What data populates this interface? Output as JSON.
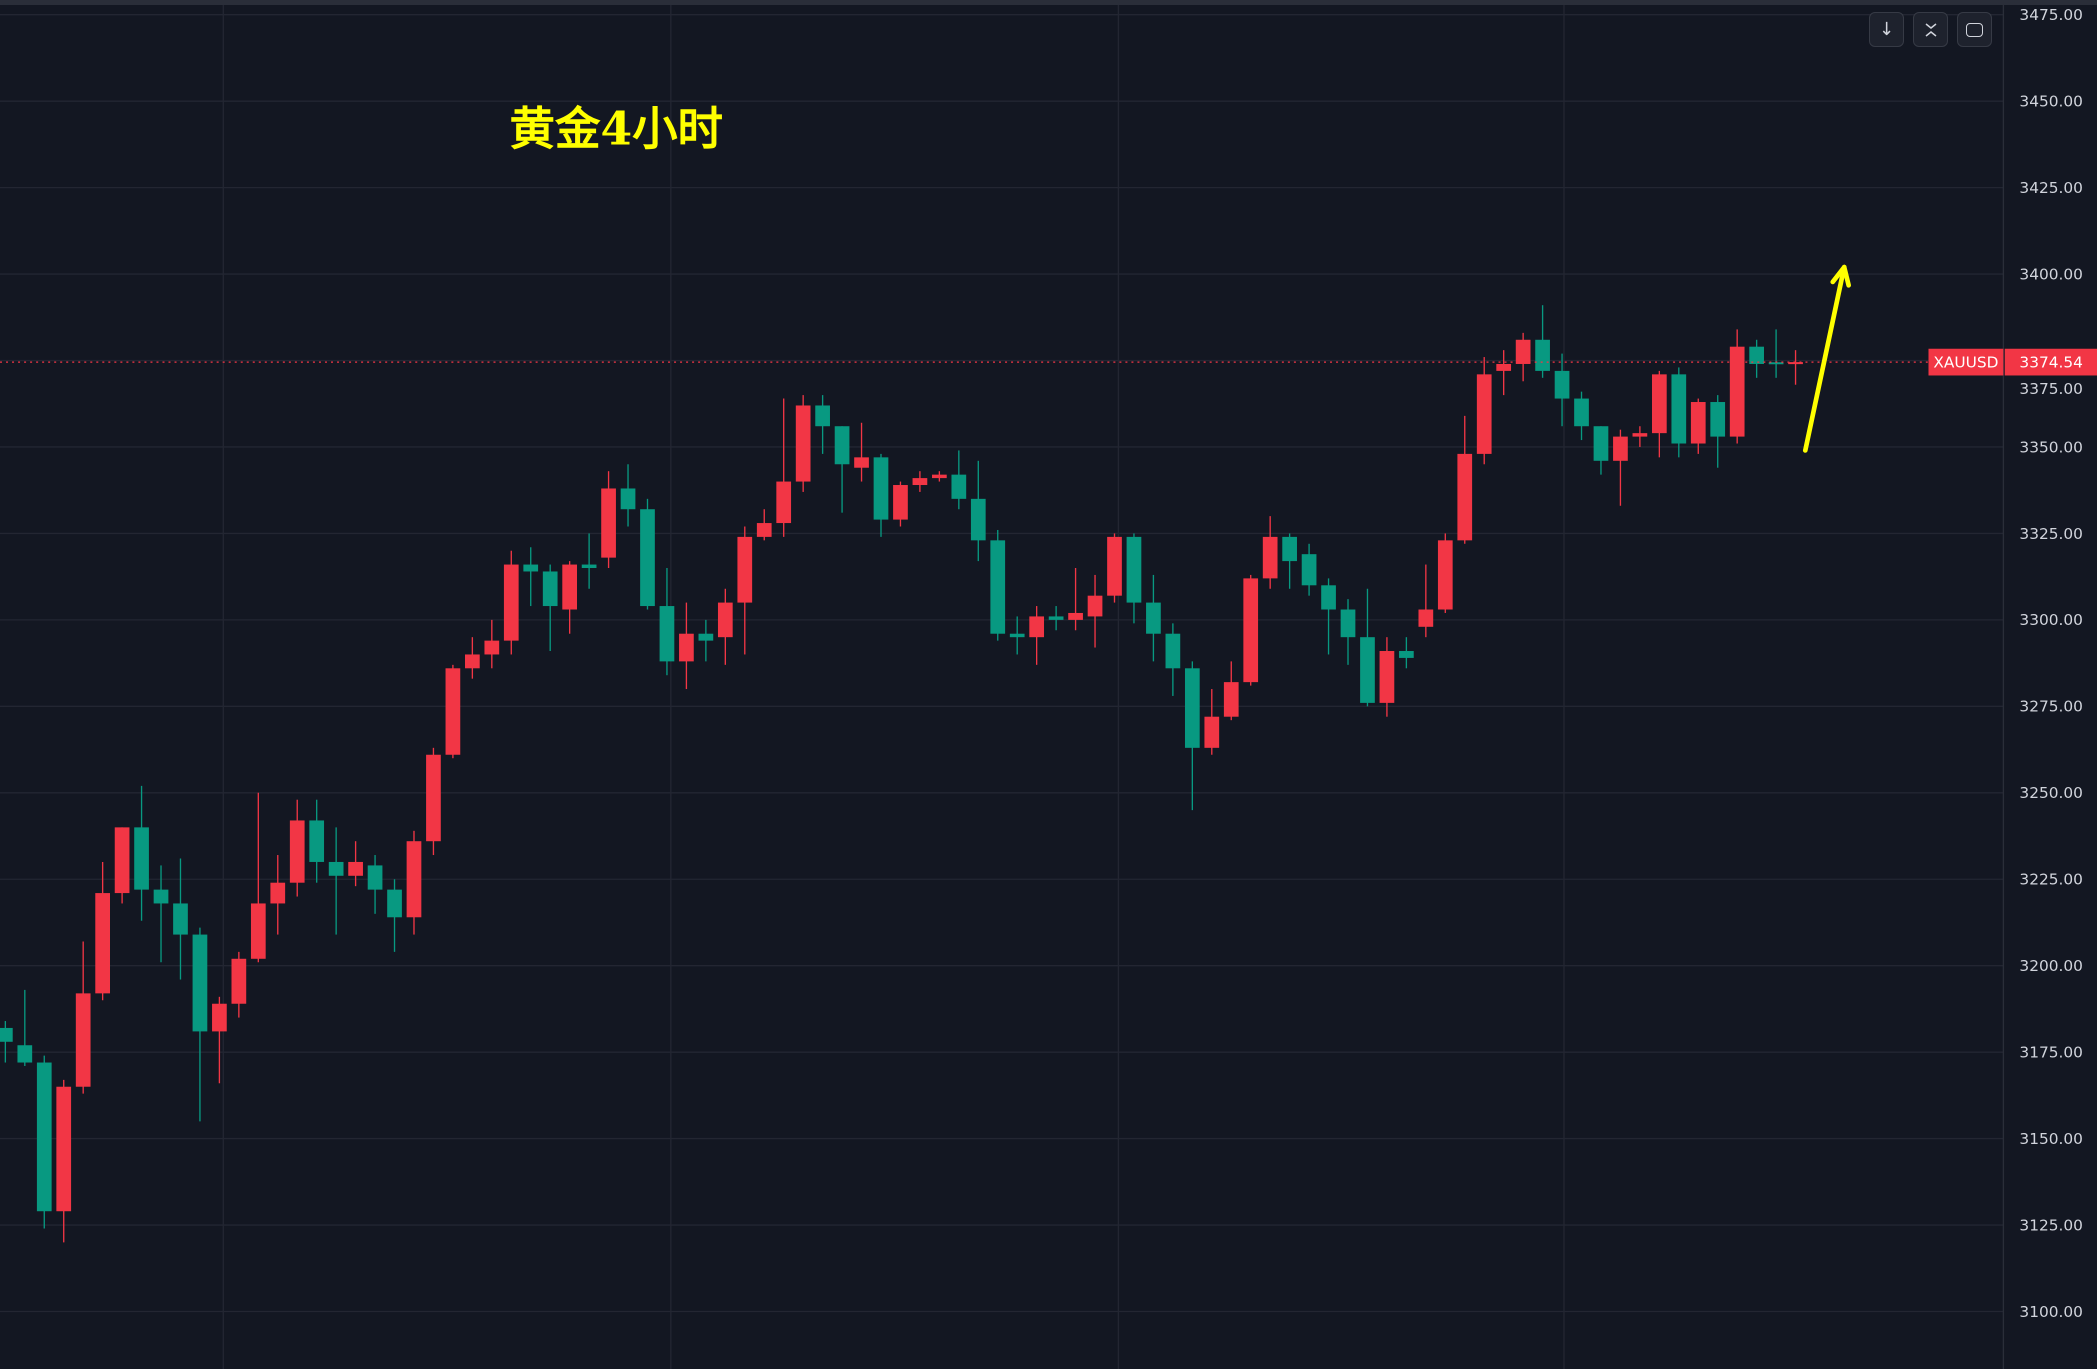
{
  "chart_data": {
    "type": "candlestick",
    "title": "黄金4小时",
    "symbol": "XAUUSD",
    "last_price": "3374.54",
    "ylim": [
      3100,
      3475
    ],
    "yticks": [
      "3100.00",
      "3125.00",
      "3150.00",
      "3175.00",
      "3200.00",
      "3225.00",
      "3250.00",
      "3275.00",
      "3300.00",
      "3325.00",
      "3350.00",
      "3375.00",
      "3400.00",
      "3425.00",
      "3450.00",
      "3475.00"
    ],
    "grid": true,
    "colors": {
      "up": "#f23645",
      "down": "#089981",
      "background": "#131722",
      "grid": "#232632",
      "annotation": "#ffff00",
      "last_price": "#f23645",
      "axis_text": "#d1d4dc"
    },
    "session_separators_at_candle": [
      11.2,
      34.2,
      57.2,
      80.1
    ],
    "annotation_arrow": {
      "from": [
        92.5,
        3349
      ],
      "to": [
        94.5,
        3402
      ]
    },
    "candles": [
      [
        3182,
        3184,
        3172,
        3178
      ],
      [
        3177,
        3193,
        3171,
        3172
      ],
      [
        3172,
        3174,
        3124,
        3129
      ],
      [
        3129,
        3167,
        3120,
        3165
      ],
      [
        3165,
        3207,
        3163,
        3192
      ],
      [
        3192,
        3230,
        3190,
        3221
      ],
      [
        3221,
        3240,
        3218,
        3240
      ],
      [
        3240,
        3252,
        3213,
        3222
      ],
      [
        3222,
        3229,
        3201,
        3218
      ],
      [
        3218,
        3231,
        3196,
        3209
      ],
      [
        3209,
        3211,
        3155,
        3181
      ],
      [
        3181,
        3191,
        3166,
        3189
      ],
      [
        3189,
        3204,
        3185,
        3202
      ],
      [
        3202,
        3250,
        3201,
        3218
      ],
      [
        3218,
        3232,
        3209,
        3224
      ],
      [
        3224,
        3248,
        3220,
        3242
      ],
      [
        3242,
        3248,
        3224,
        3230
      ],
      [
        3230,
        3240,
        3209,
        3226
      ],
      [
        3226,
        3236,
        3223,
        3230
      ],
      [
        3229,
        3232,
        3215,
        3222
      ],
      [
        3222,
        3225,
        3204,
        3214
      ],
      [
        3214,
        3239,
        3209,
        3236
      ],
      [
        3236,
        3263,
        3232,
        3261
      ],
      [
        3261,
        3287,
        3260,
        3286
      ],
      [
        3286,
        3295,
        3283,
        3290
      ],
      [
        3290,
        3300,
        3286,
        3294
      ],
      [
        3294,
        3320,
        3290,
        3316
      ],
      [
        3316,
        3321,
        3304,
        3314
      ],
      [
        3314,
        3316,
        3291,
        3304
      ],
      [
        3303,
        3317,
        3296,
        3316
      ],
      [
        3316,
        3325,
        3309,
        3315
      ],
      [
        3318,
        3343,
        3315,
        3338
      ],
      [
        3338,
        3345,
        3327,
        3332
      ],
      [
        3332,
        3335,
        3303,
        3304
      ],
      [
        3304,
        3315,
        3284,
        3288
      ],
      [
        3288,
        3305,
        3280,
        3296
      ],
      [
        3296,
        3300,
        3288,
        3294
      ],
      [
        3295,
        3309,
        3287,
        3305
      ],
      [
        3305,
        3327,
        3290,
        3324
      ],
      [
        3324,
        3332,
        3323,
        3328
      ],
      [
        3328,
        3364,
        3324,
        3340
      ],
      [
        3340,
        3365,
        3337,
        3362
      ],
      [
        3362,
        3365,
        3348,
        3356
      ],
      [
        3356,
        3356,
        3331,
        3345
      ],
      [
        3344,
        3357,
        3340,
        3347
      ],
      [
        3347,
        3348,
        3324,
        3329
      ],
      [
        3329,
        3340,
        3327,
        3339
      ],
      [
        3339,
        3343,
        3337,
        3341
      ],
      [
        3341,
        3343,
        3340,
        3342
      ],
      [
        3342,
        3349,
        3332,
        3335
      ],
      [
        3335,
        3346,
        3317,
        3323
      ],
      [
        3323,
        3326,
        3294,
        3296
      ],
      [
        3296,
        3301,
        3290,
        3295
      ],
      [
        3295,
        3304,
        3287,
        3301
      ],
      [
        3301,
        3304,
        3297,
        3300
      ],
      [
        3300,
        3315,
        3297,
        3302
      ],
      [
        3301,
        3313,
        3292,
        3307
      ],
      [
        3307,
        3325,
        3305,
        3324
      ],
      [
        3324,
        3325,
        3299,
        3305
      ],
      [
        3305,
        3313,
        3288,
        3296
      ],
      [
        3296,
        3299,
        3278,
        3286
      ],
      [
        3286,
        3288,
        3245,
        3263
      ],
      [
        3263,
        3280,
        3261,
        3272
      ],
      [
        3272,
        3288,
        3271,
        3282
      ],
      [
        3282,
        3313,
        3281,
        3312
      ],
      [
        3312,
        3330,
        3309,
        3324
      ],
      [
        3324,
        3325,
        3309,
        3317
      ],
      [
        3319,
        3322,
        3307,
        3310
      ],
      [
        3310,
        3312,
        3290,
        3303
      ],
      [
        3303,
        3306,
        3287,
        3295
      ],
      [
        3295,
        3309,
        3275,
        3276
      ],
      [
        3276,
        3295,
        3272,
        3291
      ],
      [
        3291,
        3295,
        3286,
        3289
      ],
      [
        3298,
        3316,
        3295,
        3303
      ],
      [
        3303,
        3325,
        3302,
        3323
      ],
      [
        3323,
        3359,
        3322,
        3348
      ],
      [
        3348,
        3376,
        3345,
        3371
      ],
      [
        3372,
        3378,
        3365,
        3374
      ],
      [
        3374,
        3383,
        3369,
        3381
      ],
      [
        3381,
        3391,
        3370,
        3372
      ],
      [
        3372,
        3377,
        3356,
        3364
      ],
      [
        3364,
        3366,
        3352,
        3356
      ],
      [
        3356,
        3356,
        3342,
        3346
      ],
      [
        3346,
        3355,
        3333,
        3353
      ],
      [
        3353,
        3356,
        3350,
        3354
      ],
      [
        3354,
        3372,
        3347,
        3371
      ],
      [
        3371,
        3373,
        3347,
        3351
      ],
      [
        3351,
        3364,
        3348,
        3363
      ],
      [
        3363,
        3365,
        3344,
        3353
      ],
      [
        3353,
        3384,
        3351,
        3379
      ],
      [
        3379,
        3381,
        3370,
        3374
      ],
      [
        3374.5,
        3384,
        3370,
        3374
      ],
      [
        3374,
        3378,
        3368,
        3374.54
      ]
    ]
  },
  "toolbar": {
    "icons": [
      "arrow-down-icon",
      "collapse-icon",
      "fullscreen-icon"
    ]
  }
}
